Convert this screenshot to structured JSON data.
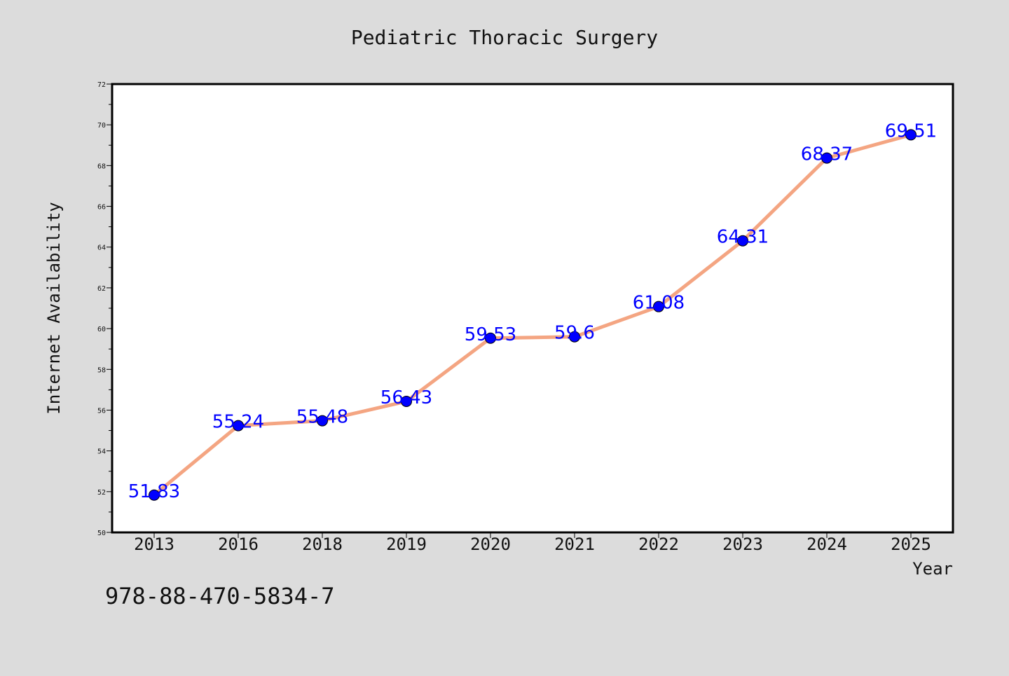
{
  "caption": "978-88-470-5834-7",
  "colors": {
    "background": "#dcdcdc",
    "plot_background": "#ffffff",
    "line": "#f4a582",
    "marker": "#0000ff",
    "label": "#0000ff"
  },
  "chart_data": {
    "type": "line",
    "title": "Pediatric Thoracic Surgery",
    "xlabel": "Year",
    "ylabel": "Internet Availability",
    "categories": [
      "2013",
      "2016",
      "2018",
      "2019",
      "2020",
      "2021",
      "2022",
      "2023",
      "2024",
      "2025"
    ],
    "values": [
      51.83,
      55.24,
      55.48,
      56.43,
      59.53,
      59.6,
      61.08,
      64.31,
      68.37,
      69.51
    ],
    "data_labels": [
      "51.83",
      "55.24",
      "55.48",
      "56.43",
      "59.53",
      "59.6",
      "61.08",
      "64.31",
      "68.37",
      "69.51"
    ],
    "ylim": [
      50,
      72
    ],
    "yticks": [
      "50",
      "52",
      "54",
      "56",
      "58",
      "60",
      "62",
      "64",
      "66",
      "68",
      "70",
      "72"
    ],
    "grid": false,
    "legend": "none"
  }
}
